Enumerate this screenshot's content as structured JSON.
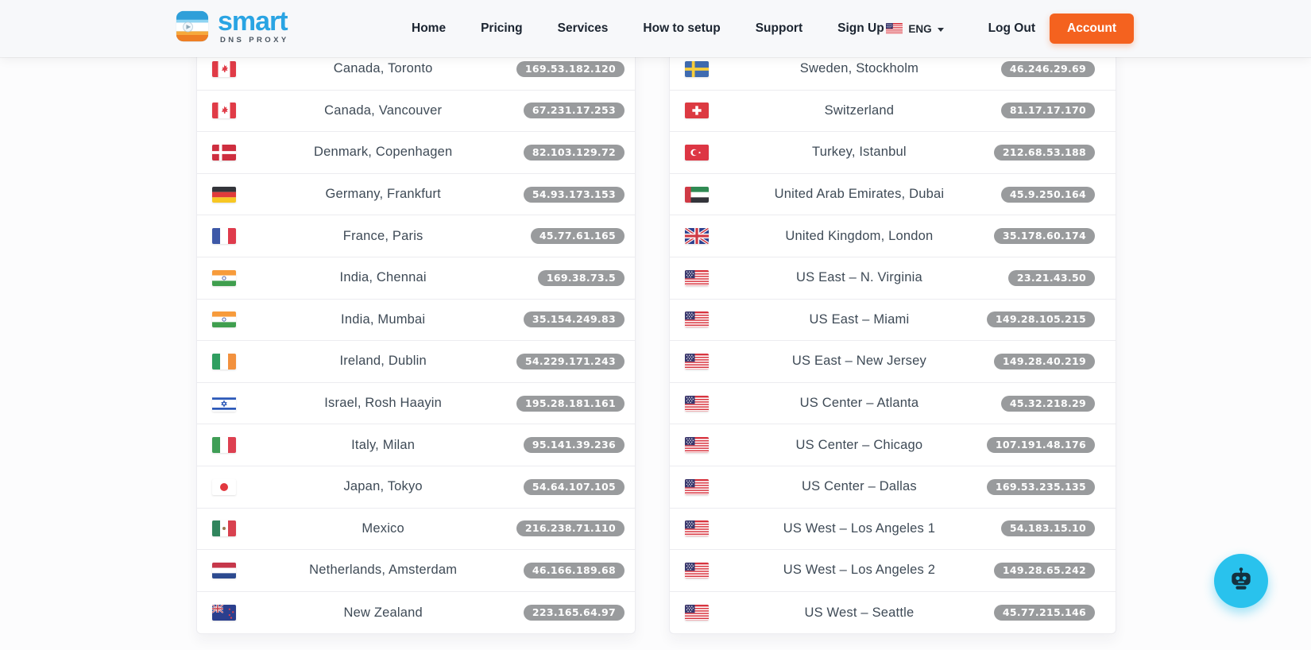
{
  "header": {
    "logo": {
      "brand": "smart",
      "subtitle": "DNS PROXY"
    },
    "nav": [
      {
        "label": "Home"
      },
      {
        "label": "Pricing"
      },
      {
        "label": "Services"
      },
      {
        "label": "How to setup"
      },
      {
        "label": "Support"
      },
      {
        "label": "Sign Up"
      }
    ],
    "language": {
      "label": "ENG",
      "flag": "us",
      "icon": "us-flag-icon"
    },
    "logout_label": "Log Out",
    "account_label": "Account"
  },
  "colors": {
    "accent_orange": "#f4621f",
    "chat_cyan": "#29c2ed",
    "ip_pill_gray": "#999b9d"
  },
  "servers": {
    "left": [
      {
        "flag": "ca",
        "name": "Canada, Toronto",
        "ip": "169.53.182.120"
      },
      {
        "flag": "ca",
        "name": "Canada, Vancouver",
        "ip": "67.231.17.253"
      },
      {
        "flag": "dk",
        "name": "Denmark, Copenhagen",
        "ip": "82.103.129.72"
      },
      {
        "flag": "de",
        "name": "Germany, Frankfurt",
        "ip": "54.93.173.153"
      },
      {
        "flag": "fr",
        "name": "France, Paris",
        "ip": "45.77.61.165"
      },
      {
        "flag": "in",
        "name": "India, Chennai",
        "ip": "169.38.73.5"
      },
      {
        "flag": "in",
        "name": "India, Mumbai",
        "ip": "35.154.249.83"
      },
      {
        "flag": "ie",
        "name": "Ireland, Dublin",
        "ip": "54.229.171.243"
      },
      {
        "flag": "il",
        "name": "Israel, Rosh Haayin",
        "ip": "195.28.181.161"
      },
      {
        "flag": "it",
        "name": "Italy, Milan",
        "ip": "95.141.39.236"
      },
      {
        "flag": "jp",
        "name": "Japan, Tokyo",
        "ip": "54.64.107.105"
      },
      {
        "flag": "mx",
        "name": "Mexico",
        "ip": "216.238.71.110"
      },
      {
        "flag": "nl",
        "name": "Netherlands, Amsterdam",
        "ip": "46.166.189.68"
      },
      {
        "flag": "nz",
        "name": "New Zealand",
        "ip": "223.165.64.97"
      }
    ],
    "right": [
      {
        "flag": "se",
        "name": "Sweden, Stockholm",
        "ip": "46.246.29.69"
      },
      {
        "flag": "ch",
        "name": "Switzerland",
        "ip": "81.17.17.170"
      },
      {
        "flag": "tr",
        "name": "Turkey, Istanbul",
        "ip": "212.68.53.188"
      },
      {
        "flag": "ae",
        "name": "United Arab Emirates, Dubai",
        "ip": "45.9.250.164"
      },
      {
        "flag": "gb",
        "name": "United Kingdom, London",
        "ip": "35.178.60.174"
      },
      {
        "flag": "us",
        "name": "US East – N. Virginia",
        "ip": "23.21.43.50"
      },
      {
        "flag": "us",
        "name": "US East – Miami",
        "ip": "149.28.105.215"
      },
      {
        "flag": "us",
        "name": "US East – New Jersey",
        "ip": "149.28.40.219"
      },
      {
        "flag": "us",
        "name": "US Center – Atlanta",
        "ip": "45.32.218.29"
      },
      {
        "flag": "us",
        "name": "US Center – Chicago",
        "ip": "107.191.48.176"
      },
      {
        "flag": "us",
        "name": "US Center – Dallas",
        "ip": "169.53.235.135"
      },
      {
        "flag": "us",
        "name": "US West – Los Angeles 1",
        "ip": "54.183.15.10"
      },
      {
        "flag": "us",
        "name": "US West – Los Angeles 2",
        "ip": "149.28.65.242"
      },
      {
        "flag": "us",
        "name": "US West – Seattle",
        "ip": "45.77.215.146"
      }
    ]
  }
}
